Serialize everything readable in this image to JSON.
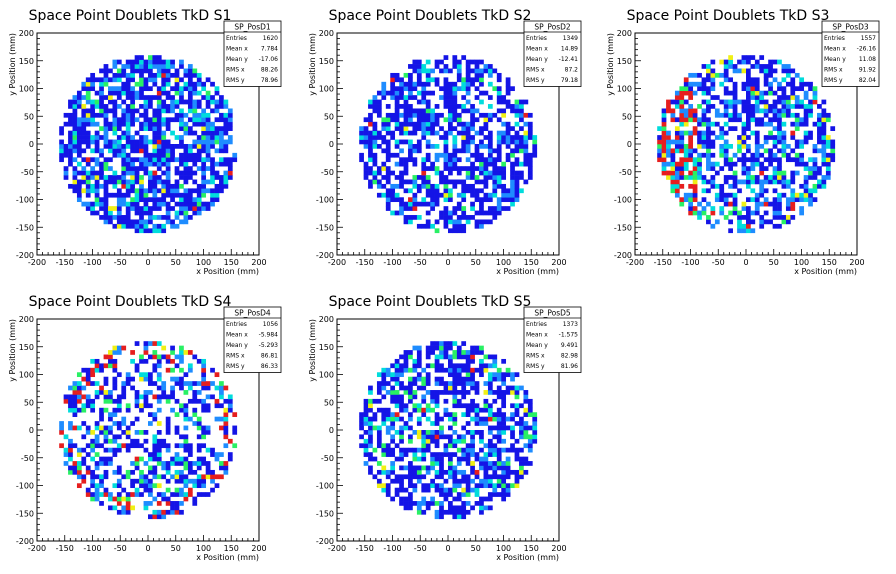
{
  "chart_data": [
    {
      "type": "heatmap",
      "title": "Space Point Doublets TkD S1",
      "xlabel": "x Position (mm)",
      "ylabel": "y Position (mm)",
      "xlim": [
        -200,
        200
      ],
      "ylim": [
        -200,
        200
      ],
      "x_ticks": [
        "-200",
        "-150",
        "-100",
        "-50",
        "0",
        "50",
        "100",
        "150",
        "200"
      ],
      "y_ticks": [
        "-200",
        "-150",
        "-100",
        "-50",
        "0",
        "50",
        "100",
        "150",
        "200"
      ],
      "stats": {
        "name": "SP_PosD1",
        "rows": [
          {
            "label": "Entries",
            "value": "1620"
          },
          {
            "label": "Mean x",
            "value": "7.784"
          },
          {
            "label": "Mean y",
            "value": "-17.06"
          },
          {
            "label": "RMS x",
            "value": "88.26"
          },
          {
            "label": "RMS y",
            "value": "78.96"
          }
        ]
      },
      "disk_radius": 160,
      "bin_size": 8,
      "fill_fraction": 0.72,
      "color_weights": [
        0.62,
        0.22,
        0.1,
        0.04,
        0.015,
        0.005
      ],
      "hot_region": "none",
      "seed": 11
    },
    {
      "type": "heatmap",
      "title": "Space Point Doublets TkD S2",
      "xlabel": "x Position (mm)",
      "ylabel": "y Position (mm)",
      "xlim": [
        -200,
        200
      ],
      "ylim": [
        -200,
        200
      ],
      "x_ticks": [
        "-200",
        "-150",
        "-100",
        "-50",
        "0",
        "50",
        "100",
        "150",
        "200"
      ],
      "y_ticks": [
        "-200",
        "-150",
        "-100",
        "-50",
        "0",
        "50",
        "100",
        "150",
        "200"
      ],
      "stats": {
        "name": "SP_PosD2",
        "rows": [
          {
            "label": "Entries",
            "value": "1349"
          },
          {
            "label": "Mean x",
            "value": "14.89"
          },
          {
            "label": "Mean y",
            "value": "-12.41"
          },
          {
            "label": "RMS x",
            "value": "87.2"
          },
          {
            "label": "RMS y",
            "value": "79.18"
          }
        ]
      },
      "disk_radius": 160,
      "bin_size": 8,
      "fill_fraction": 0.62,
      "color_weights": [
        0.72,
        0.14,
        0.09,
        0.035,
        0.01,
        0.005
      ],
      "hot_region": "none",
      "seed": 23
    },
    {
      "type": "heatmap",
      "title": "Space Point Doublets TkD S3",
      "xlabel": "x Position (mm)",
      "ylabel": "y Position (mm)",
      "xlim": [
        -200,
        200
      ],
      "ylim": [
        -200,
        200
      ],
      "x_ticks": [
        "-200",
        "-150",
        "-100",
        "-50",
        "0",
        "50",
        "100",
        "150",
        "200"
      ],
      "y_ticks": [
        "-200",
        "-150",
        "-100",
        "-50",
        "0",
        "50",
        "100",
        "150",
        "200"
      ],
      "stats": {
        "name": "SP_PosD3",
        "rows": [
          {
            "label": "Entries",
            "value": "1557"
          },
          {
            "label": "Mean x",
            "value": "-26.16"
          },
          {
            "label": "Mean y",
            "value": "11.08"
          },
          {
            "label": "RMS x",
            "value": "91.92"
          },
          {
            "label": "RMS y",
            "value": "82.04"
          }
        ]
      },
      "disk_radius": 160,
      "bin_size": 8,
      "fill_fraction": 0.6,
      "color_weights": [
        0.55,
        0.2,
        0.13,
        0.07,
        0.03,
        0.02
      ],
      "hot_region": "left",
      "seed": 37
    },
    {
      "type": "heatmap",
      "title": "Space Point Doublets TkD S4",
      "xlabel": "x Position (mm)",
      "ylabel": "y Position (mm)",
      "xlim": [
        -200,
        200
      ],
      "ylim": [
        -200,
        200
      ],
      "x_ticks": [
        "-200",
        "-150",
        "-100",
        "-50",
        "0",
        "50",
        "100",
        "150",
        "200"
      ],
      "y_ticks": [
        "-200",
        "-150",
        "-100",
        "-50",
        "0",
        "50",
        "100",
        "150",
        "200"
      ],
      "stats": {
        "name": "SP_PosD4",
        "rows": [
          {
            "label": "Entries",
            "value": "1056"
          },
          {
            "label": "Mean x",
            "value": "-5.984"
          },
          {
            "label": "Mean y",
            "value": "-5.293"
          },
          {
            "label": "RMS x",
            "value": "86.81"
          },
          {
            "label": "RMS y",
            "value": "86.33"
          }
        ]
      },
      "disk_radius": 160,
      "bin_size": 8,
      "fill_fraction": 0.45,
      "color_weights": [
        0.6,
        0.2,
        0.1,
        0.06,
        0.025,
        0.015
      ],
      "hot_region": "rim",
      "seed": 51
    },
    {
      "type": "heatmap",
      "title": "Space Point Doublets TkD S5",
      "xlabel": "x Position (mm)",
      "ylabel": "y Position (mm)",
      "xlim": [
        -200,
        200
      ],
      "ylim": [
        -200,
        200
      ],
      "x_ticks": [
        "-200",
        "-150",
        "-100",
        "-50",
        "0",
        "50",
        "100",
        "150",
        "200"
      ],
      "y_ticks": [
        "-200",
        "-150",
        "-100",
        "-50",
        "0",
        "50",
        "100",
        "150",
        "200"
      ],
      "stats": {
        "name": "SP_PosD5",
        "rows": [
          {
            "label": "Entries",
            "value": "1373"
          },
          {
            "label": "Mean x",
            "value": "-1.575"
          },
          {
            "label": "Mean y",
            "value": "9.491"
          },
          {
            "label": "RMS x",
            "value": "82.98"
          },
          {
            "label": "RMS y",
            "value": "81.96"
          }
        ]
      },
      "disk_radius": 160,
      "bin_size": 8,
      "fill_fraction": 0.6,
      "color_weights": [
        0.66,
        0.16,
        0.1,
        0.05,
        0.02,
        0.01
      ],
      "hot_region": "none",
      "seed": 67
    }
  ],
  "palette": [
    "#1414e6",
    "#1e8cff",
    "#00dcdc",
    "#28f064",
    "#f0f014",
    "#e61e1e"
  ]
}
